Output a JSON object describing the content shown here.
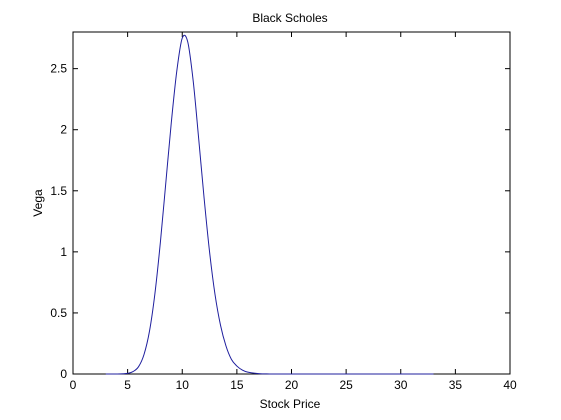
{
  "chart_data": {
    "type": "line",
    "title": "Black Scholes",
    "xlabel": "Stock Price",
    "ylabel": "Vega",
    "xlim": [
      0,
      40
    ],
    "ylim": [
      0,
      2.8
    ],
    "xticks": [
      0,
      5,
      10,
      15,
      20,
      25,
      30,
      35,
      40
    ],
    "xtick_labels": [
      "0",
      "5",
      "10",
      "15",
      "20",
      "25",
      "30",
      "35",
      "40"
    ],
    "yticks": [
      0,
      0.5,
      1,
      1.5,
      2,
      2.5
    ],
    "ytick_labels": [
      "0",
      "0.5",
      "1",
      "1.5",
      "2",
      "2.5"
    ],
    "grid": false,
    "box": true,
    "colors": {
      "line": "#1f1f9e",
      "axes": "#000000",
      "background": "#ffffff"
    },
    "series": [
      {
        "x": [
          3,
          4,
          5,
          5.5,
          6,
          6.5,
          7,
          7.5,
          8,
          8.5,
          9,
          9.5,
          10,
          10.5,
          11,
          11.5,
          12,
          12.5,
          13,
          13.5,
          14,
          14.5,
          15,
          15.5,
          16,
          17,
          18,
          20,
          22,
          25,
          28,
          30,
          33
        ],
        "y": [
          0,
          0.0001,
          0.005,
          0.02,
          0.06,
          0.16,
          0.35,
          0.66,
          1.08,
          1.57,
          2.06,
          2.48,
          2.75,
          2.72,
          2.4,
          1.93,
          1.44,
          1.0,
          0.65,
          0.4,
          0.23,
          0.12,
          0.065,
          0.032,
          0.015,
          0.003,
          0.0005,
          0,
          0,
          0,
          0,
          0,
          0
        ]
      }
    ]
  }
}
